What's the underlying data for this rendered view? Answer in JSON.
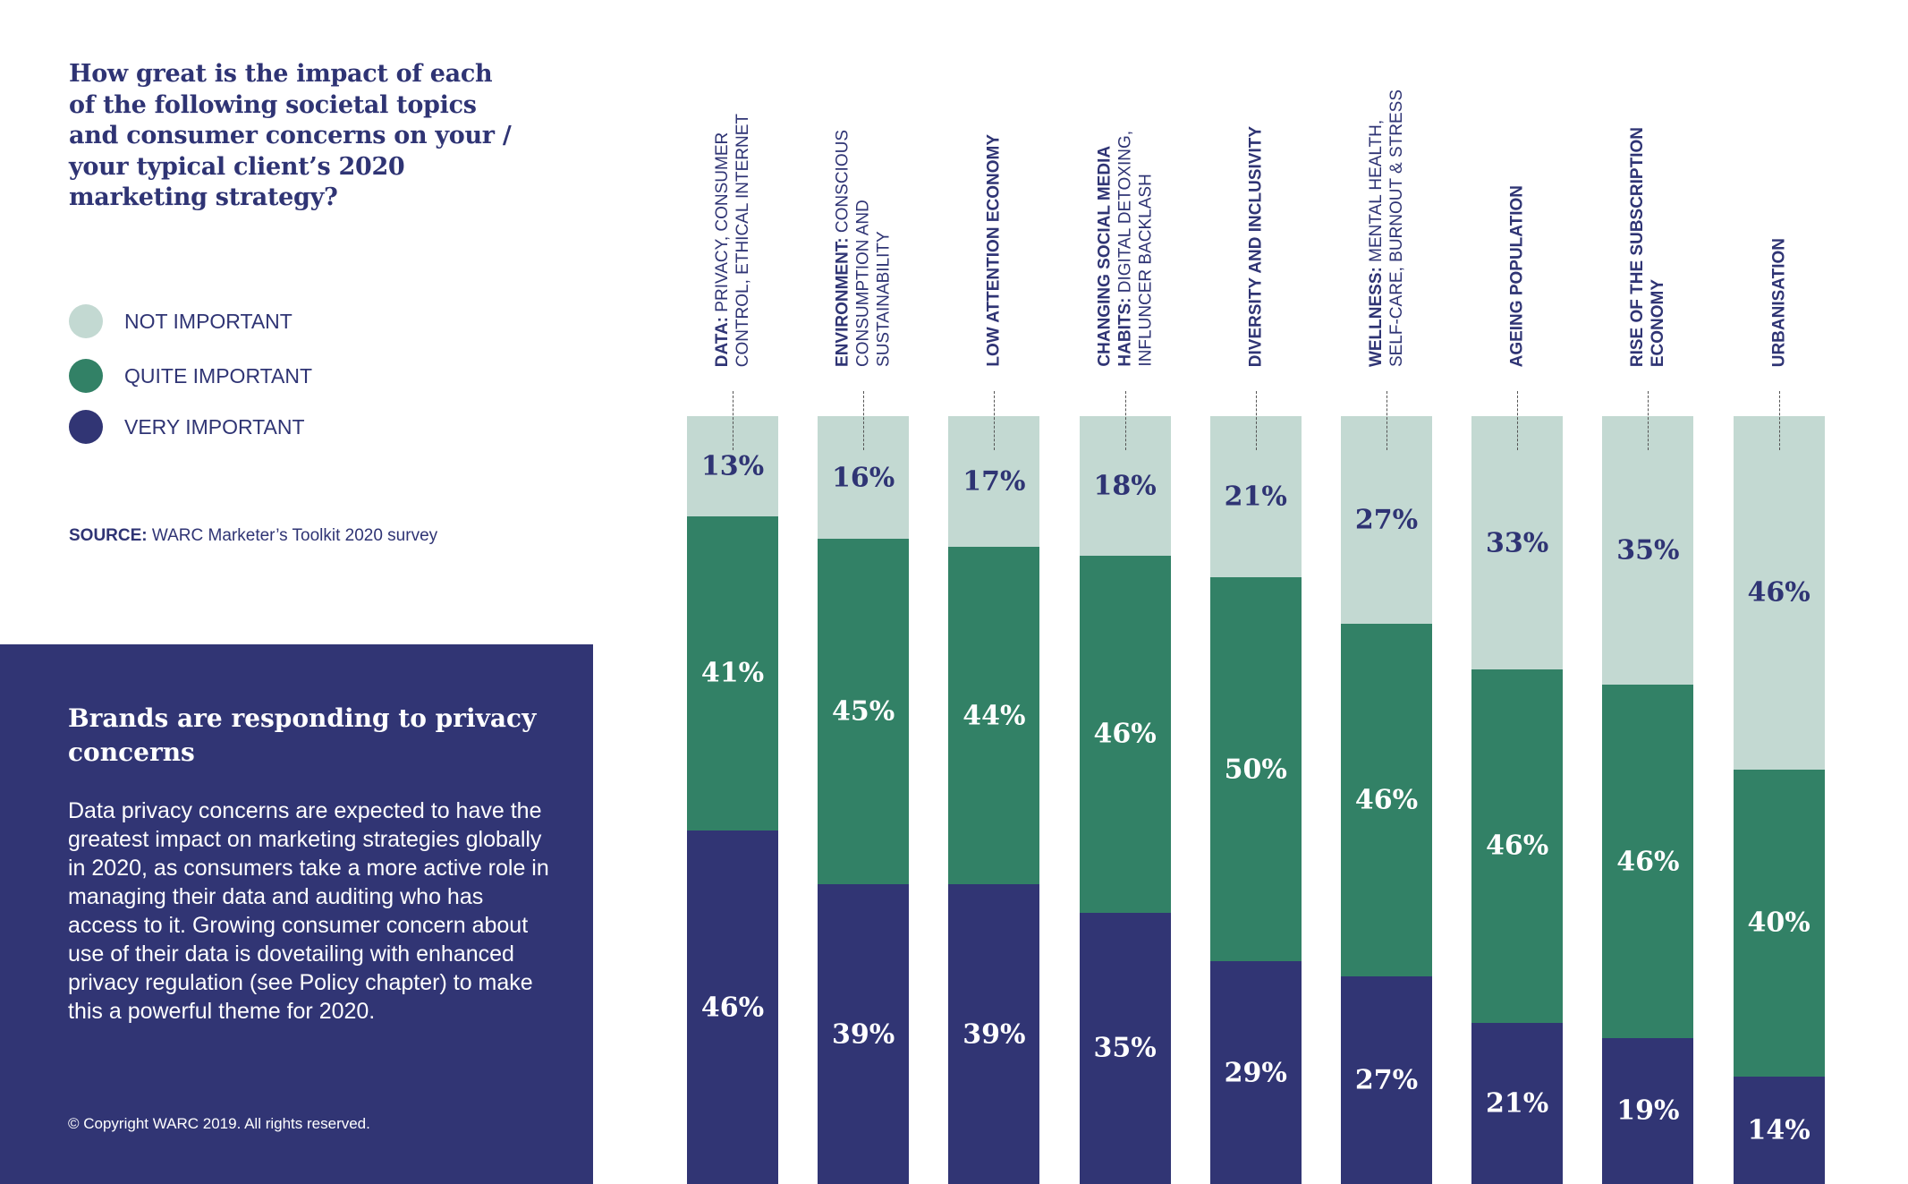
{
  "question": "How great is the impact of each of the following societal topics and consumer concerns on your / your typical client’s 2020 marketing strategy?",
  "source": {
    "label": "SOURCE:",
    "text": " WARC Marketer’s Toolkit 2020 survey"
  },
  "callout": {
    "heading": "Brands are responding to privacy concerns",
    "body": "Data privacy concerns are expected to have the greatest impact on marketing strategies globally in 2020, as consumers take a more active role in managing their data and auditing who has access to it. Growing consumer concern about use of their data is dovetailing with enhanced privacy regulation (see Policy chapter) to make this a powerful theme for 2020.",
    "copyright": "© Copyright WARC 2019. All rights reserved."
  },
  "colors": {
    "not": "#c3d9d2",
    "quite": "#328166",
    "very": "#313574",
    "text": "#2f3474"
  },
  "chart_data": {
    "type": "bar",
    "stacked": true,
    "orientation": "vertical",
    "title": "How great is the impact of each of the following societal topics and consumer concerns on your / your typical client’s 2020 marketing strategy?",
    "legend": [
      "NOT IMPORTANT",
      "QUITE IMPORTANT",
      "VERY IMPORTANT"
    ],
    "legend_position": "left",
    "categories": [
      {
        "bold": "DATA:",
        "text": " PRIVACY, CONSUMER\nCONTROL, ETHICAL INTERNET"
      },
      {
        "bold": "ENVIRONMENT:",
        "text": " CONSCIOUS\nCONSUMPTION AND\nSUSTAINABILITY"
      },
      {
        "bold": "LOW ATTENTION ECONOMY",
        "text": ""
      },
      {
        "bold": "CHANGING SOCIAL MEDIA\nHABITS:",
        "text": " DIGITAL DETOXING,\nINFLUNCER BACKLASH"
      },
      {
        "bold": "DIVERSITY AND INCLUSIVITY",
        "text": ""
      },
      {
        "bold": "WELLNESS:",
        "text": " MENTAL HEALTH,\nSELF-CARE, BURNOUT & STRESS"
      },
      {
        "bold": "AGEING POPULATION",
        "text": ""
      },
      {
        "bold": "RISE OF THE SUBSCRIPTION\nECONOMY",
        "text": ""
      },
      {
        "bold": "URBANISATION",
        "text": ""
      }
    ],
    "series": [
      {
        "name": "NOT IMPORTANT",
        "values": [
          13,
          16,
          17,
          18,
          21,
          27,
          33,
          35,
          46
        ]
      },
      {
        "name": "QUITE IMPORTANT",
        "values": [
          41,
          45,
          44,
          46,
          50,
          46,
          46,
          46,
          40
        ]
      },
      {
        "name": "VERY IMPORTANT",
        "values": [
          46,
          39,
          39,
          35,
          29,
          27,
          21,
          19,
          14
        ]
      }
    ],
    "unit": "%",
    "ylim": [
      0,
      100
    ],
    "grid": false
  }
}
